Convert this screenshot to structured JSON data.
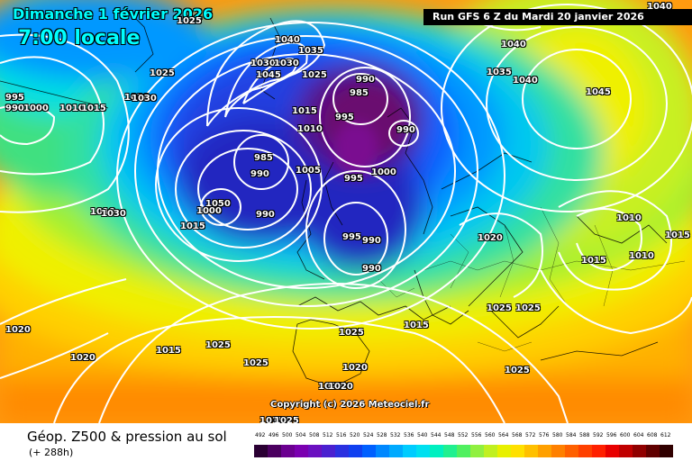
{
  "header": {
    "date": "Dimanche 1 février 2026",
    "time": "7:00 locale",
    "run": "Run GFS 6 Z du Mardi 20 janvier 2026"
  },
  "copyright": "Copyright (c) 2026 Meteociel.fr",
  "footer": {
    "title": "Géop. Z500 & pression au sol",
    "hours": "(+ 288h)"
  },
  "legend": {
    "values": [
      "492",
      "496",
      "500",
      "504",
      "508",
      "512",
      "516",
      "520",
      "524",
      "528",
      "532",
      "536",
      "540",
      "544",
      "548",
      "552",
      "556",
      "560",
      "564",
      "568",
      "572",
      "576",
      "580",
      "584",
      "588",
      "592",
      "596",
      "600",
      "604",
      "608",
      "612"
    ],
    "colors": [
      "#2a0033",
      "#4b0060",
      "#6b0090",
      "#7a00b0",
      "#6a10c0",
      "#4a20d0",
      "#2a30e0",
      "#1040f0",
      "#0060ff",
      "#0088ff",
      "#00aaff",
      "#00ccff",
      "#00e0f0",
      "#00f0c0",
      "#20f090",
      "#50f060",
      "#90f040",
      "#c0f020",
      "#e8f000",
      "#ffe000",
      "#ffc000",
      "#ffa000",
      "#ff8000",
      "#ff6000",
      "#ff4000",
      "#ff2000",
      "#e80000",
      "#c00000",
      "#900000",
      "#600000",
      "#300000"
    ]
  },
  "pressure_labels": [
    "1025",
    "995",
    "990",
    "1000",
    "1010",
    "1015",
    "1025",
    "1030",
    "1040",
    "1035",
    "1025",
    "1030",
    "1045",
    "1030",
    "1025",
    "1015",
    "1010",
    "1035",
    "1040",
    "1040",
    "1040",
    "1045",
    "990",
    "985",
    "995",
    "1015",
    "1010",
    "995",
    "1000",
    "1005",
    "985",
    "990",
    "990",
    "1000",
    "1050",
    "990",
    "995",
    "990",
    "990",
    "1030",
    "1030",
    "1020",
    "1025",
    "1025",
    "1015",
    "1010",
    "1015",
    "1010",
    "1015",
    "1020",
    "1025",
    "1025",
    "1020",
    "1015",
    "1020",
    "1025",
    "1020",
    "1025",
    "1020",
    "1015",
    "1025"
  ]
}
